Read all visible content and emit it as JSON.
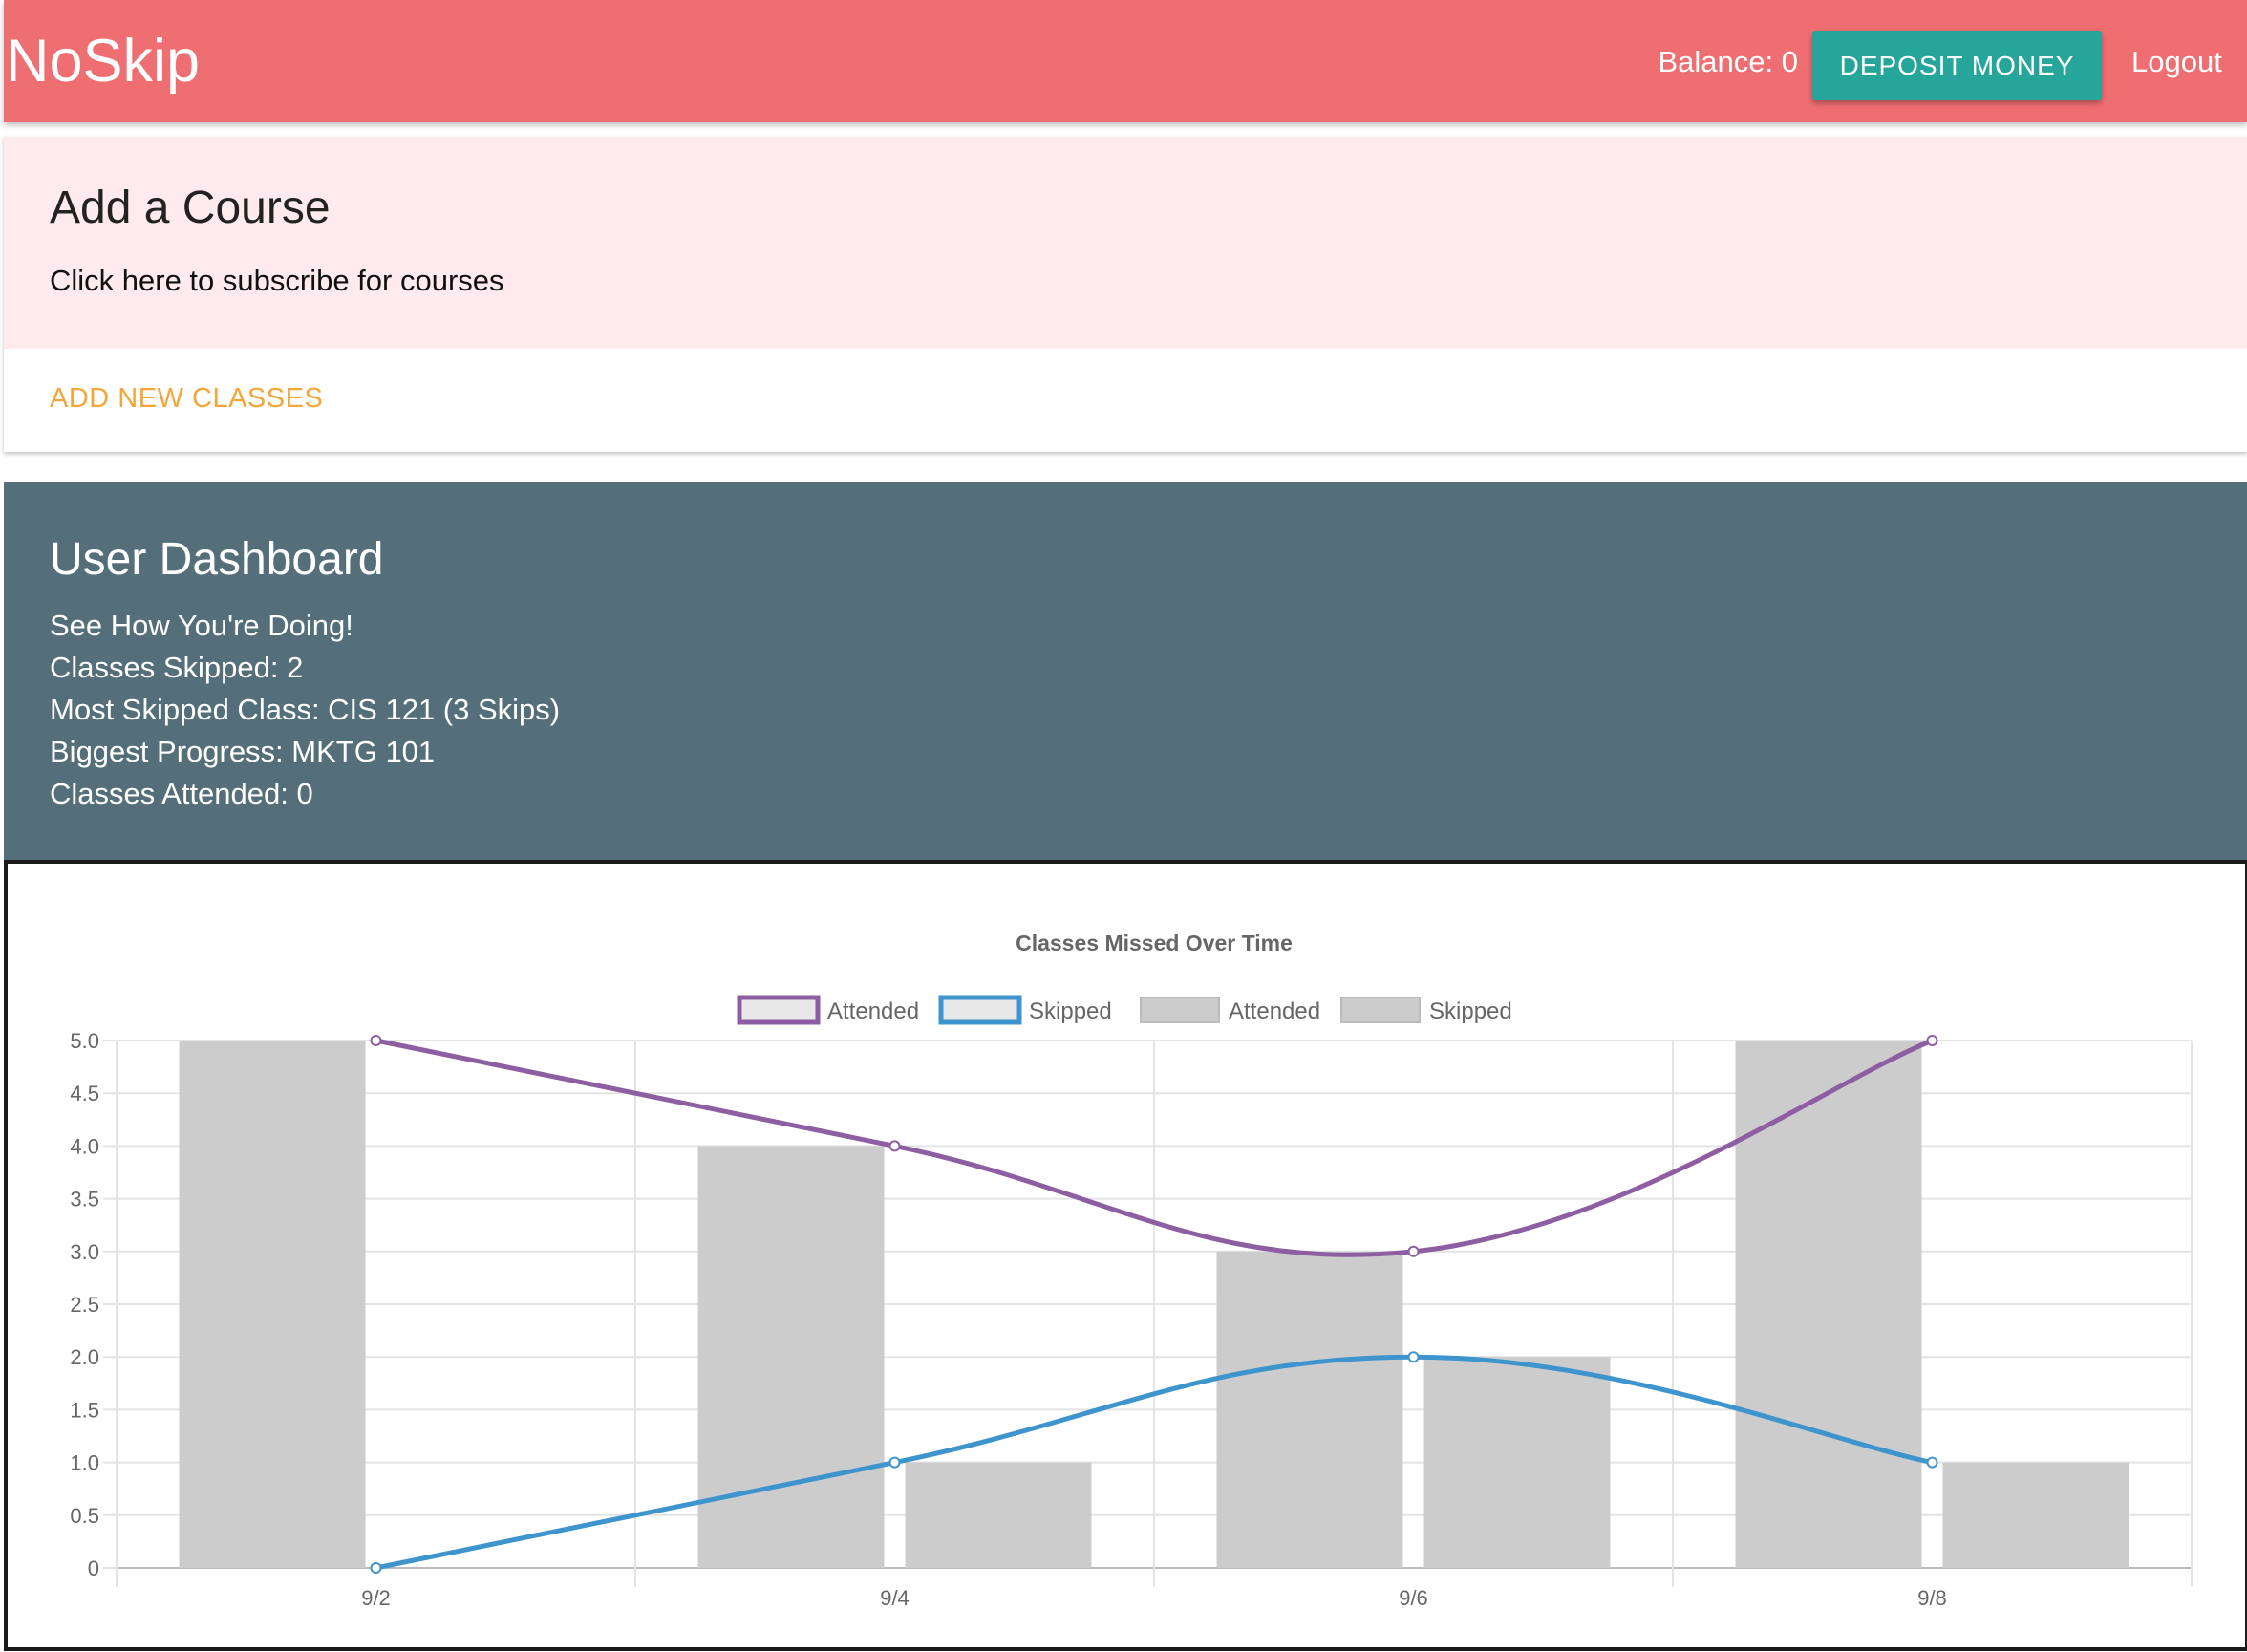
{
  "navbar": {
    "brand": "NoSkip",
    "balance": "Balance: 0",
    "deposit_label": "DEPOSIT MONEY",
    "logout_label": "Logout",
    "color": "#ef6e72"
  },
  "course_card": {
    "title": "Add a Course",
    "text": "Click here to subscribe for courses",
    "action_label": "ADD NEW CLASSES"
  },
  "dashboard": {
    "title": "User Dashboard",
    "lines": [
      "See How You're Doing!",
      "Classes Skipped: 2",
      "Most Skipped Class: CIS 121 (3 Skips)",
      "Biggest Progress: MKTG 101",
      "Classes Attended: 0"
    ]
  },
  "chart_data": {
    "type": "bar",
    "title": "Classes Missed Over Time",
    "categories": [
      "9/2",
      "9/4",
      "9/6",
      "9/8"
    ],
    "ylim": [
      0,
      5
    ],
    "yticks": [
      "0",
      "0.5",
      "1.0",
      "1.5",
      "2.0",
      "2.5",
      "3.0",
      "3.5",
      "4.0",
      "4.5",
      "5.0"
    ],
    "grid": true,
    "legend_position": "top",
    "series": [
      {
        "name": "Attended",
        "kind": "line",
        "color": "#8e5ea2",
        "values": [
          5,
          4,
          3,
          5
        ]
      },
      {
        "name": "Skipped",
        "kind": "line",
        "color": "#3e95cd",
        "values": [
          0,
          1,
          2,
          1
        ]
      },
      {
        "name": "Attended",
        "kind": "bar",
        "color": "#cccccc",
        "values": [
          5,
          4,
          3,
          5
        ]
      },
      {
        "name": "Skipped",
        "kind": "bar",
        "color": "#cccccc",
        "values": [
          0,
          1,
          2,
          1
        ]
      }
    ]
  }
}
